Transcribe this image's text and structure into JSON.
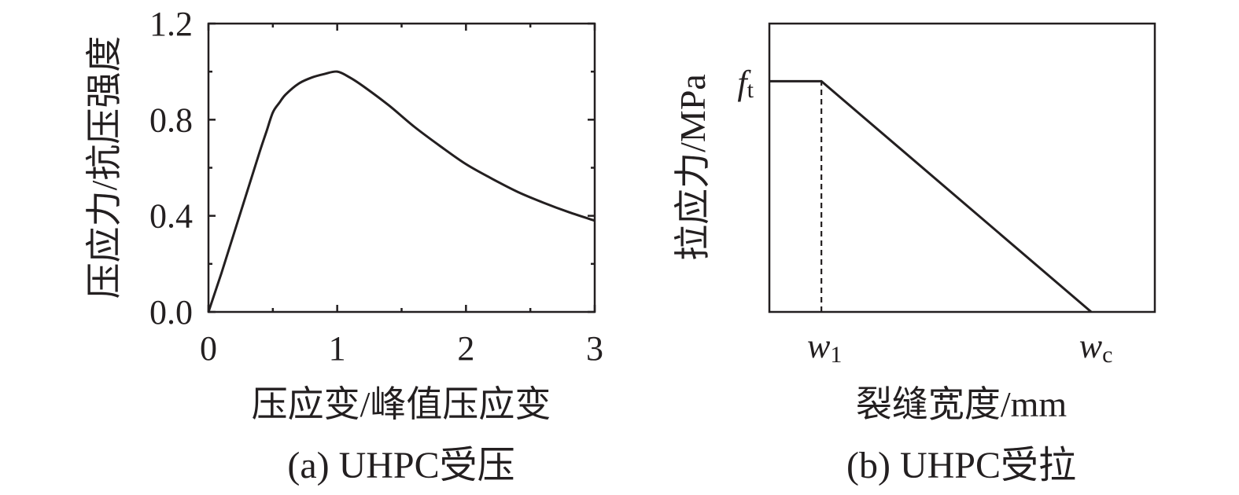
{
  "chart_data": [
    {
      "type": "line",
      "caption": "(a) UHPC受压",
      "xlabel": "压应变/峰值压应变",
      "ylabel": "压应力/抗压强度",
      "xlim": [
        0,
        3
      ],
      "ylim": [
        0,
        1.2
      ],
      "x_ticks": [
        "0",
        "1",
        "2",
        "3"
      ],
      "y_ticks": [
        "0.0",
        "0.4",
        "0.8",
        "1.2"
      ],
      "x_minor_ticks": [
        0.5,
        1.5,
        2.5
      ],
      "y_minor_ticks": [
        0.2,
        0.6,
        1.0
      ],
      "series": [
        {
          "x": [
            0,
            0.1,
            0.2,
            0.3,
            0.4,
            0.45,
            0.5,
            0.55,
            0.6,
            0.7,
            0.8,
            0.9,
            1.0,
            1.1,
            1.2,
            1.4,
            1.6,
            1.8,
            2.0,
            2.2,
            2.4,
            2.6,
            2.8,
            3.0
          ],
          "y": [
            0,
            0.16,
            0.33,
            0.5,
            0.67,
            0.75,
            0.83,
            0.87,
            0.905,
            0.95,
            0.975,
            0.99,
            1.0,
            0.975,
            0.94,
            0.86,
            0.77,
            0.69,
            0.615,
            0.555,
            0.5,
            0.455,
            0.415,
            0.38
          ]
        }
      ]
    },
    {
      "type": "line",
      "caption": "(b) UHPC受拉",
      "xlabel": "裂缝宽度/mm",
      "ylabel": "拉应力/MPa",
      "x_ticks": [
        "w1",
        "wc"
      ],
      "y_ticks": [
        "ft"
      ],
      "x_tick_parts": [
        {
          "main": "w",
          "sub": "1"
        },
        {
          "main": "w",
          "sub": "c"
        }
      ],
      "y_tick_parts": [
        {
          "main": "f",
          "sub": "t"
        }
      ],
      "xlim": [
        0,
        1
      ],
      "ylim": [
        0,
        1
      ],
      "series": [
        {
          "x": [
            0,
            0.135,
            0.835
          ],
          "y": [
            0.8,
            0.8,
            0
          ]
        }
      ],
      "reference_lines": [
        {
          "style": "dashed",
          "x": [
            0.135,
            0.135
          ],
          "y": [
            0,
            0.8
          ]
        }
      ]
    }
  ]
}
